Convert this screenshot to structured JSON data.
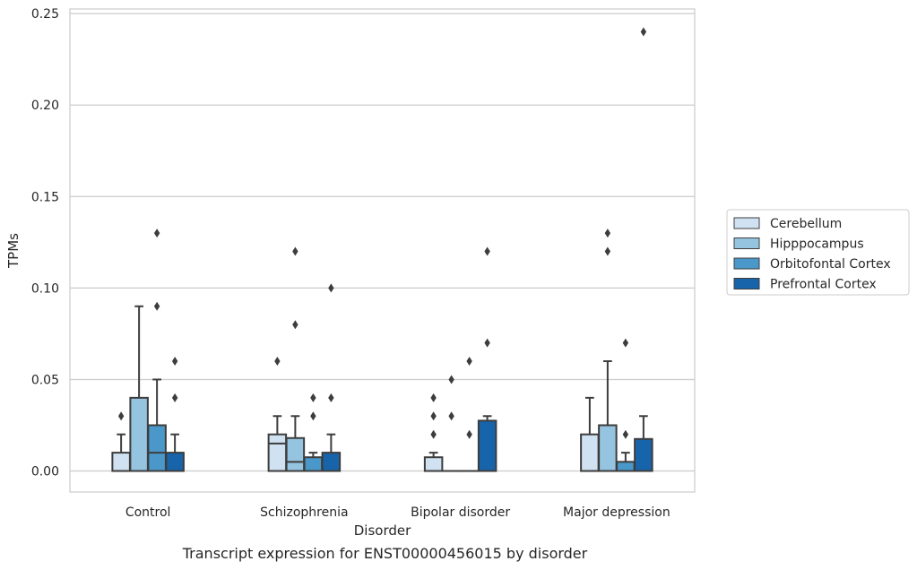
{
  "chart_data": {
    "type": "box",
    "title": "",
    "caption": "Transcript expression for ENST00000456015 by disorder",
    "xlabel": "Disorder",
    "ylabel": "TPMs",
    "ylim": [
      -0.0115,
      0.2525
    ],
    "yticks": [
      0.0,
      0.05,
      0.1,
      0.15,
      0.2,
      0.25
    ],
    "ytick_labels": [
      "0.00",
      "0.05",
      "0.10",
      "0.15",
      "0.20",
      "0.25"
    ],
    "grid": "horizontal",
    "legend_position": "right",
    "categories": [
      "Control",
      "Schizophrenia",
      "Bipolar disorder",
      "Major depression"
    ],
    "series": [
      {
        "name": "Cerebellum",
        "color": "#d0e1f2",
        "boxes": [
          {
            "q1": 0.0,
            "median": 0.0,
            "q3": 0.01,
            "whisker_low": 0.0,
            "whisker_high": 0.02,
            "outliers": [
              0.03
            ]
          },
          {
            "q1": 0.0,
            "median": 0.015,
            "q3": 0.02,
            "whisker_low": 0.0,
            "whisker_high": 0.03,
            "outliers": [
              0.06
            ]
          },
          {
            "q1": 0.0,
            "median": 0.0,
            "q3": 0.0075,
            "whisker_low": 0.0,
            "whisker_high": 0.01,
            "outliers": [
              0.02,
              0.03,
              0.04
            ]
          },
          {
            "q1": 0.0,
            "median": 0.0,
            "q3": 0.02,
            "whisker_low": 0.0,
            "whisker_high": 0.04,
            "outliers": []
          }
        ]
      },
      {
        "name": "Hipppocampus",
        "color": "#94c4df",
        "boxes": [
          {
            "q1": 0.0,
            "median": 0.0,
            "q3": 0.04,
            "whisker_low": 0.0,
            "whisker_high": 0.09,
            "outliers": []
          },
          {
            "q1": 0.0,
            "median": 0.005,
            "q3": 0.018,
            "whisker_low": 0.0,
            "whisker_high": 0.03,
            "outliers": [
              0.08,
              0.12
            ]
          },
          {
            "q1": 0.0,
            "median": 0.0,
            "q3": 0.0,
            "whisker_low": 0.0,
            "whisker_high": 0.0,
            "outliers": [
              0.03,
              0.05
            ]
          },
          {
            "q1": 0.0,
            "median": 0.0,
            "q3": 0.025,
            "whisker_low": 0.0,
            "whisker_high": 0.06,
            "outliers": [
              0.12,
              0.13
            ]
          }
        ]
      },
      {
        "name": "Orbitofontal Cortex",
        "color": "#4a98c9",
        "boxes": [
          {
            "q1": 0.0,
            "median": 0.01,
            "q3": 0.025,
            "whisker_low": 0.0,
            "whisker_high": 0.05,
            "outliers": [
              0.09,
              0.13
            ]
          },
          {
            "q1": 0.0,
            "median": 0.0,
            "q3": 0.0075,
            "whisker_low": 0.0,
            "whisker_high": 0.01,
            "outliers": [
              0.03,
              0.04
            ]
          },
          {
            "q1": 0.0,
            "median": 0.0,
            "q3": 0.0,
            "whisker_low": 0.0,
            "whisker_high": 0.0,
            "outliers": [
              0.02,
              0.06
            ]
          },
          {
            "q1": 0.0,
            "median": 0.0,
            "q3": 0.005,
            "whisker_low": 0.0,
            "whisker_high": 0.01,
            "outliers": [
              0.02,
              0.07
            ]
          }
        ]
      },
      {
        "name": "Prefrontal Cortex",
        "color": "#1764ab",
        "boxes": [
          {
            "q1": 0.0,
            "median": 0.0,
            "q3": 0.01,
            "whisker_low": 0.0,
            "whisker_high": 0.02,
            "outliers": [
              0.04,
              0.06
            ]
          },
          {
            "q1": 0.0,
            "median": 0.0,
            "q3": 0.01,
            "whisker_low": 0.0,
            "whisker_high": 0.02,
            "outliers": [
              0.04,
              0.1
            ]
          },
          {
            "q1": 0.0,
            "median": 0.0,
            "q3": 0.0275,
            "whisker_low": 0.0,
            "whisker_high": 0.03,
            "outliers": [
              0.07,
              0.12
            ]
          },
          {
            "q1": 0.0,
            "median": 0.0,
            "q3": 0.0175,
            "whisker_low": 0.0,
            "whisker_high": 0.03,
            "outliers": [
              0.24
            ]
          }
        ]
      }
    ]
  }
}
